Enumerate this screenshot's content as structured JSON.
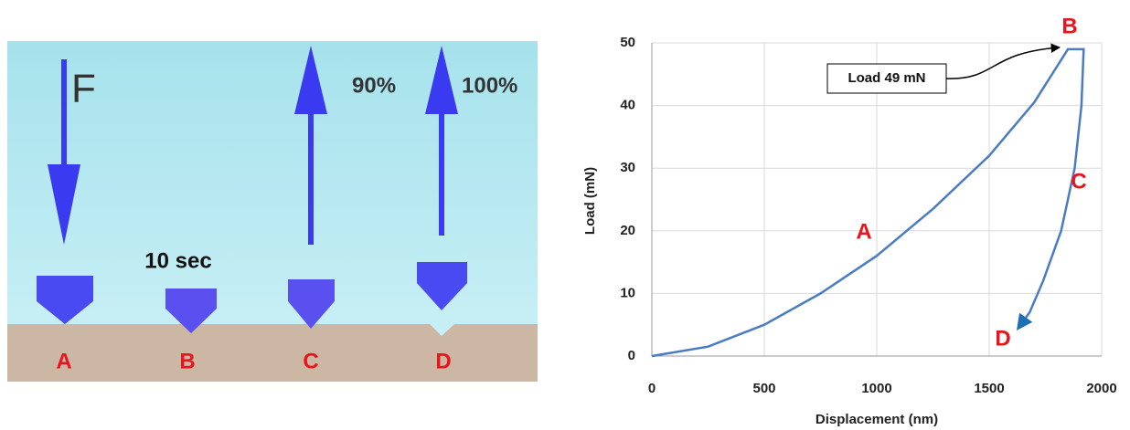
{
  "diagram": {
    "force_label": "F",
    "stages": [
      {
        "label": "A"
      },
      {
        "label": "B",
        "note": "10 sec"
      },
      {
        "label": "C",
        "note": "90%"
      },
      {
        "label": "D",
        "note": "100%"
      }
    ]
  },
  "chart_data": {
    "type": "line",
    "x_label": "Displacement (nm)",
    "y_label": "Load (mN)",
    "x": [
      0,
      250,
      500,
      750,
      1000,
      1250,
      1500,
      1700,
      1850,
      1920,
      1910,
      1880,
      1820,
      1740,
      1680,
      1630
    ],
    "values": [
      0,
      1.5,
      5,
      10,
      16,
      23.5,
      32,
      40.5,
      49,
      49,
      40,
      30,
      20,
      12,
      7,
      4.5
    ],
    "color": "#4a7cc4",
    "xlim": [
      0,
      2000
    ],
    "xticks": [
      0,
      500,
      1000,
      1500,
      2000
    ],
    "ylim": [
      0,
      50
    ],
    "yticks": [
      0,
      10,
      20,
      30,
      40,
      50
    ],
    "grid": true,
    "annotations": [
      "A",
      "B",
      "C",
      "D",
      "Load 49 mN"
    ]
  }
}
